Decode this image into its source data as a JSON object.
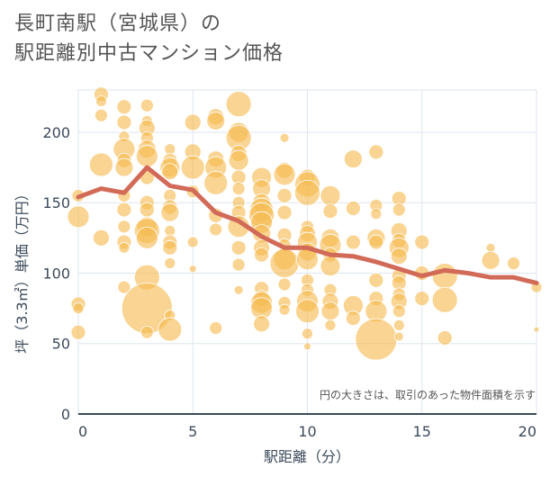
{
  "title": {
    "line1": "長町南駅（宮城県）の",
    "line2": "駅距離別中古マンション価格"
  },
  "note": "円の大きさは、取引のあった物件面積を示す",
  "colors": {
    "bubble": "#f5b94f",
    "line": "#d26a58",
    "grid": "#dde6ee",
    "axis": "#3c4a5a",
    "title": "#555555"
  },
  "chart_data": {
    "type": "scatter",
    "xlabel": "駅距離（分）",
    "ylabel": "坪（3.3㎡）単価（万円）",
    "xlim": [
      0,
      20
    ],
    "ylim": [
      0,
      230
    ],
    "x_ticks": [
      "0",
      "5",
      "10",
      "15",
      "20"
    ],
    "y_ticks": [
      "0",
      "50",
      "100",
      "150",
      "200"
    ],
    "grid": true,
    "bubbles": [
      {
        "x": 0,
        "y": 155,
        "r": 7
      },
      {
        "x": 0,
        "y": 140,
        "r": 12
      },
      {
        "x": 0,
        "y": 78,
        "r": 8
      },
      {
        "x": 0,
        "y": 75,
        "r": 6
      },
      {
        "x": 0,
        "y": 58,
        "r": 8
      },
      {
        "x": 1,
        "y": 227,
        "r": 8
      },
      {
        "x": 1,
        "y": 222,
        "r": 6
      },
      {
        "x": 1,
        "y": 212,
        "r": 7
      },
      {
        "x": 1,
        "y": 177,
        "r": 13
      },
      {
        "x": 1,
        "y": 125,
        "r": 9
      },
      {
        "x": 2,
        "y": 218,
        "r": 8
      },
      {
        "x": 2,
        "y": 207,
        "r": 8
      },
      {
        "x": 2,
        "y": 197,
        "r": 6
      },
      {
        "x": 2,
        "y": 188,
        "r": 12
      },
      {
        "x": 2,
        "y": 180,
        "r": 8
      },
      {
        "x": 2,
        "y": 175,
        "r": 10
      },
      {
        "x": 2,
        "y": 155,
        "r": 7
      },
      {
        "x": 2,
        "y": 145,
        "r": 8
      },
      {
        "x": 2,
        "y": 133,
        "r": 7
      },
      {
        "x": 2,
        "y": 122,
        "r": 8
      },
      {
        "x": 2,
        "y": 118,
        "r": 6
      },
      {
        "x": 2,
        "y": 90,
        "r": 7
      },
      {
        "x": 3,
        "y": 219,
        "r": 7
      },
      {
        "x": 3,
        "y": 208,
        "r": 6
      },
      {
        "x": 3,
        "y": 203,
        "r": 9
      },
      {
        "x": 3,
        "y": 196,
        "r": 7
      },
      {
        "x": 3,
        "y": 188,
        "r": 10
      },
      {
        "x": 3,
        "y": 183,
        "r": 12
      },
      {
        "x": 3,
        "y": 168,
        "r": 8
      },
      {
        "x": 3,
        "y": 150,
        "r": 8
      },
      {
        "x": 3,
        "y": 145,
        "r": 8
      },
      {
        "x": 3,
        "y": 133,
        "r": 11
      },
      {
        "x": 3,
        "y": 130,
        "r": 14
      },
      {
        "x": 3,
        "y": 125,
        "r": 12
      },
      {
        "x": 3,
        "y": 97,
        "r": 14
      },
      {
        "x": 3,
        "y": 75,
        "r": 28
      },
      {
        "x": 3,
        "y": 58,
        "r": 7
      },
      {
        "x": 4,
        "y": 188,
        "r": 6
      },
      {
        "x": 4,
        "y": 180,
        "r": 8
      },
      {
        "x": 4,
        "y": 175,
        "r": 11
      },
      {
        "x": 4,
        "y": 172,
        "r": 9
      },
      {
        "x": 4,
        "y": 155,
        "r": 7
      },
      {
        "x": 4,
        "y": 147,
        "r": 8
      },
      {
        "x": 4,
        "y": 143,
        "r": 10
      },
      {
        "x": 4,
        "y": 130,
        "r": 6
      },
      {
        "x": 4,
        "y": 122,
        "r": 8
      },
      {
        "x": 4,
        "y": 118,
        "r": 8
      },
      {
        "x": 4,
        "y": 107,
        "r": 6
      },
      {
        "x": 4,
        "y": 70,
        "r": 6
      },
      {
        "x": 4,
        "y": 60,
        "r": 13
      },
      {
        "x": 5,
        "y": 207,
        "r": 9
      },
      {
        "x": 5,
        "y": 186,
        "r": 9
      },
      {
        "x": 5,
        "y": 175,
        "r": 13
      },
      {
        "x": 5,
        "y": 158,
        "r": 7
      },
      {
        "x": 5,
        "y": 122,
        "r": 6
      },
      {
        "x": 5,
        "y": 103,
        "r": 4
      },
      {
        "x": 6,
        "y": 211,
        "r": 9
      },
      {
        "x": 6,
        "y": 208,
        "r": 10
      },
      {
        "x": 6,
        "y": 181,
        "r": 9
      },
      {
        "x": 6,
        "y": 175,
        "r": 12
      },
      {
        "x": 6,
        "y": 164,
        "r": 13
      },
      {
        "x": 6,
        "y": 141,
        "r": 8
      },
      {
        "x": 6,
        "y": 131,
        "r": 7
      },
      {
        "x": 6,
        "y": 61,
        "r": 7
      },
      {
        "x": 7,
        "y": 220,
        "r": 14
      },
      {
        "x": 7,
        "y": 200,
        "r": 11
      },
      {
        "x": 7,
        "y": 196,
        "r": 14
      },
      {
        "x": 7,
        "y": 185,
        "r": 9
      },
      {
        "x": 7,
        "y": 180,
        "r": 11
      },
      {
        "x": 7,
        "y": 168,
        "r": 8
      },
      {
        "x": 7,
        "y": 160,
        "r": 7
      },
      {
        "x": 7,
        "y": 150,
        "r": 7
      },
      {
        "x": 7,
        "y": 143,
        "r": 8
      },
      {
        "x": 7,
        "y": 133,
        "r": 12
      },
      {
        "x": 7,
        "y": 118,
        "r": 8
      },
      {
        "x": 7,
        "y": 106,
        "r": 7
      },
      {
        "x": 7,
        "y": 88,
        "r": 5
      },
      {
        "x": 8,
        "y": 168,
        "r": 11
      },
      {
        "x": 8,
        "y": 160,
        "r": 10
      },
      {
        "x": 8,
        "y": 150,
        "r": 10
      },
      {
        "x": 8,
        "y": 145,
        "r": 13
      },
      {
        "x": 8,
        "y": 141,
        "r": 14
      },
      {
        "x": 8,
        "y": 136,
        "r": 12
      },
      {
        "x": 8,
        "y": 128,
        "r": 10
      },
      {
        "x": 8,
        "y": 118,
        "r": 9
      },
      {
        "x": 8,
        "y": 113,
        "r": 8
      },
      {
        "x": 8,
        "y": 89,
        "r": 8
      },
      {
        "x": 8,
        "y": 82,
        "r": 9
      },
      {
        "x": 8,
        "y": 79,
        "r": 12
      },
      {
        "x": 8,
        "y": 75,
        "r": 12
      },
      {
        "x": 8,
        "y": 64,
        "r": 9
      },
      {
        "x": 9,
        "y": 196,
        "r": 5
      },
      {
        "x": 9,
        "y": 173,
        "r": 9
      },
      {
        "x": 9,
        "y": 170,
        "r": 12
      },
      {
        "x": 9,
        "y": 155,
        "r": 8
      },
      {
        "x": 9,
        "y": 143,
        "r": 8
      },
      {
        "x": 9,
        "y": 127,
        "r": 8
      },
      {
        "x": 9,
        "y": 120,
        "r": 7
      },
      {
        "x": 9,
        "y": 110,
        "r": 12
      },
      {
        "x": 9,
        "y": 107,
        "r": 16
      },
      {
        "x": 9,
        "y": 92,
        "r": 7
      },
      {
        "x": 9,
        "y": 79,
        "r": 7
      },
      {
        "x": 9,
        "y": 74,
        "r": 6
      },
      {
        "x": 10,
        "y": 168,
        "r": 9
      },
      {
        "x": 10,
        "y": 163,
        "r": 14
      },
      {
        "x": 10,
        "y": 157,
        "r": 14
      },
      {
        "x": 10,
        "y": 133,
        "r": 7
      },
      {
        "x": 10,
        "y": 128,
        "r": 9
      },
      {
        "x": 10,
        "y": 122,
        "r": 11
      },
      {
        "x": 10,
        "y": 115,
        "r": 10
      },
      {
        "x": 10,
        "y": 110,
        "r": 12
      },
      {
        "x": 10,
        "y": 95,
        "r": 7
      },
      {
        "x": 10,
        "y": 88,
        "r": 7
      },
      {
        "x": 10,
        "y": 80,
        "r": 12
      },
      {
        "x": 10,
        "y": 73,
        "r": 13
      },
      {
        "x": 10,
        "y": 57,
        "r": 6
      },
      {
        "x": 10,
        "y": 48,
        "r": 4
      },
      {
        "x": 11,
        "y": 155,
        "r": 11
      },
      {
        "x": 11,
        "y": 144,
        "r": 8
      },
      {
        "x": 11,
        "y": 125,
        "r": 10
      },
      {
        "x": 11,
        "y": 120,
        "r": 12
      },
      {
        "x": 11,
        "y": 113,
        "r": 8
      },
      {
        "x": 11,
        "y": 105,
        "r": 11
      },
      {
        "x": 11,
        "y": 88,
        "r": 7
      },
      {
        "x": 11,
        "y": 80,
        "r": 9
      },
      {
        "x": 11,
        "y": 73,
        "r": 10
      },
      {
        "x": 11,
        "y": 63,
        "r": 6
      },
      {
        "x": 12,
        "y": 181,
        "r": 10
      },
      {
        "x": 12,
        "y": 146,
        "r": 8
      },
      {
        "x": 12,
        "y": 122,
        "r": 8
      },
      {
        "x": 12,
        "y": 77,
        "r": 11
      },
      {
        "x": 12,
        "y": 68,
        "r": 8
      },
      {
        "x": 13,
        "y": 186,
        "r": 8
      },
      {
        "x": 13,
        "y": 148,
        "r": 7
      },
      {
        "x": 13,
        "y": 142,
        "r": 6
      },
      {
        "x": 13,
        "y": 125,
        "r": 10
      },
      {
        "x": 13,
        "y": 122,
        "r": 8
      },
      {
        "x": 13,
        "y": 95,
        "r": 8
      },
      {
        "x": 13,
        "y": 82,
        "r": 8
      },
      {
        "x": 13,
        "y": 73,
        "r": 12
      },
      {
        "x": 13,
        "y": 53,
        "r": 23
      },
      {
        "x": 14,
        "y": 153,
        "r": 8
      },
      {
        "x": 14,
        "y": 145,
        "r": 7
      },
      {
        "x": 14,
        "y": 130,
        "r": 9
      },
      {
        "x": 14,
        "y": 123,
        "r": 8
      },
      {
        "x": 14,
        "y": 118,
        "r": 11
      },
      {
        "x": 14,
        "y": 112,
        "r": 9
      },
      {
        "x": 14,
        "y": 98,
        "r": 8
      },
      {
        "x": 14,
        "y": 93,
        "r": 8
      },
      {
        "x": 14,
        "y": 85,
        "r": 7
      },
      {
        "x": 14,
        "y": 80,
        "r": 9
      },
      {
        "x": 14,
        "y": 73,
        "r": 7
      },
      {
        "x": 14,
        "y": 63,
        "r": 6
      },
      {
        "x": 14,
        "y": 55,
        "r": 5
      },
      {
        "x": 15,
        "y": 122,
        "r": 8
      },
      {
        "x": 15,
        "y": 100,
        "r": 8
      },
      {
        "x": 15,
        "y": 82,
        "r": 8
      },
      {
        "x": 16,
        "y": 98,
        "r": 14
      },
      {
        "x": 16,
        "y": 81,
        "r": 14
      },
      {
        "x": 16,
        "y": 54,
        "r": 8
      },
      {
        "x": 18,
        "y": 118,
        "r": 5
      },
      {
        "x": 18,
        "y": 109,
        "r": 10
      },
      {
        "x": 19,
        "y": 107,
        "r": 7
      },
      {
        "x": 20,
        "y": 90,
        "r": 6
      },
      {
        "x": 20,
        "y": 60,
        "r": 3
      }
    ],
    "trend": {
      "x": [
        0,
        1,
        2,
        3,
        4,
        5,
        6,
        7,
        8,
        9,
        10,
        11,
        12,
        13,
        14,
        15,
        16,
        17,
        18,
        19,
        20
      ],
      "y": [
        154,
        160,
        157,
        175,
        162,
        159,
        143,
        137,
        126,
        118,
        118,
        113,
        112,
        108,
        103,
        98,
        102,
        100,
        97,
        97,
        93
      ]
    }
  }
}
